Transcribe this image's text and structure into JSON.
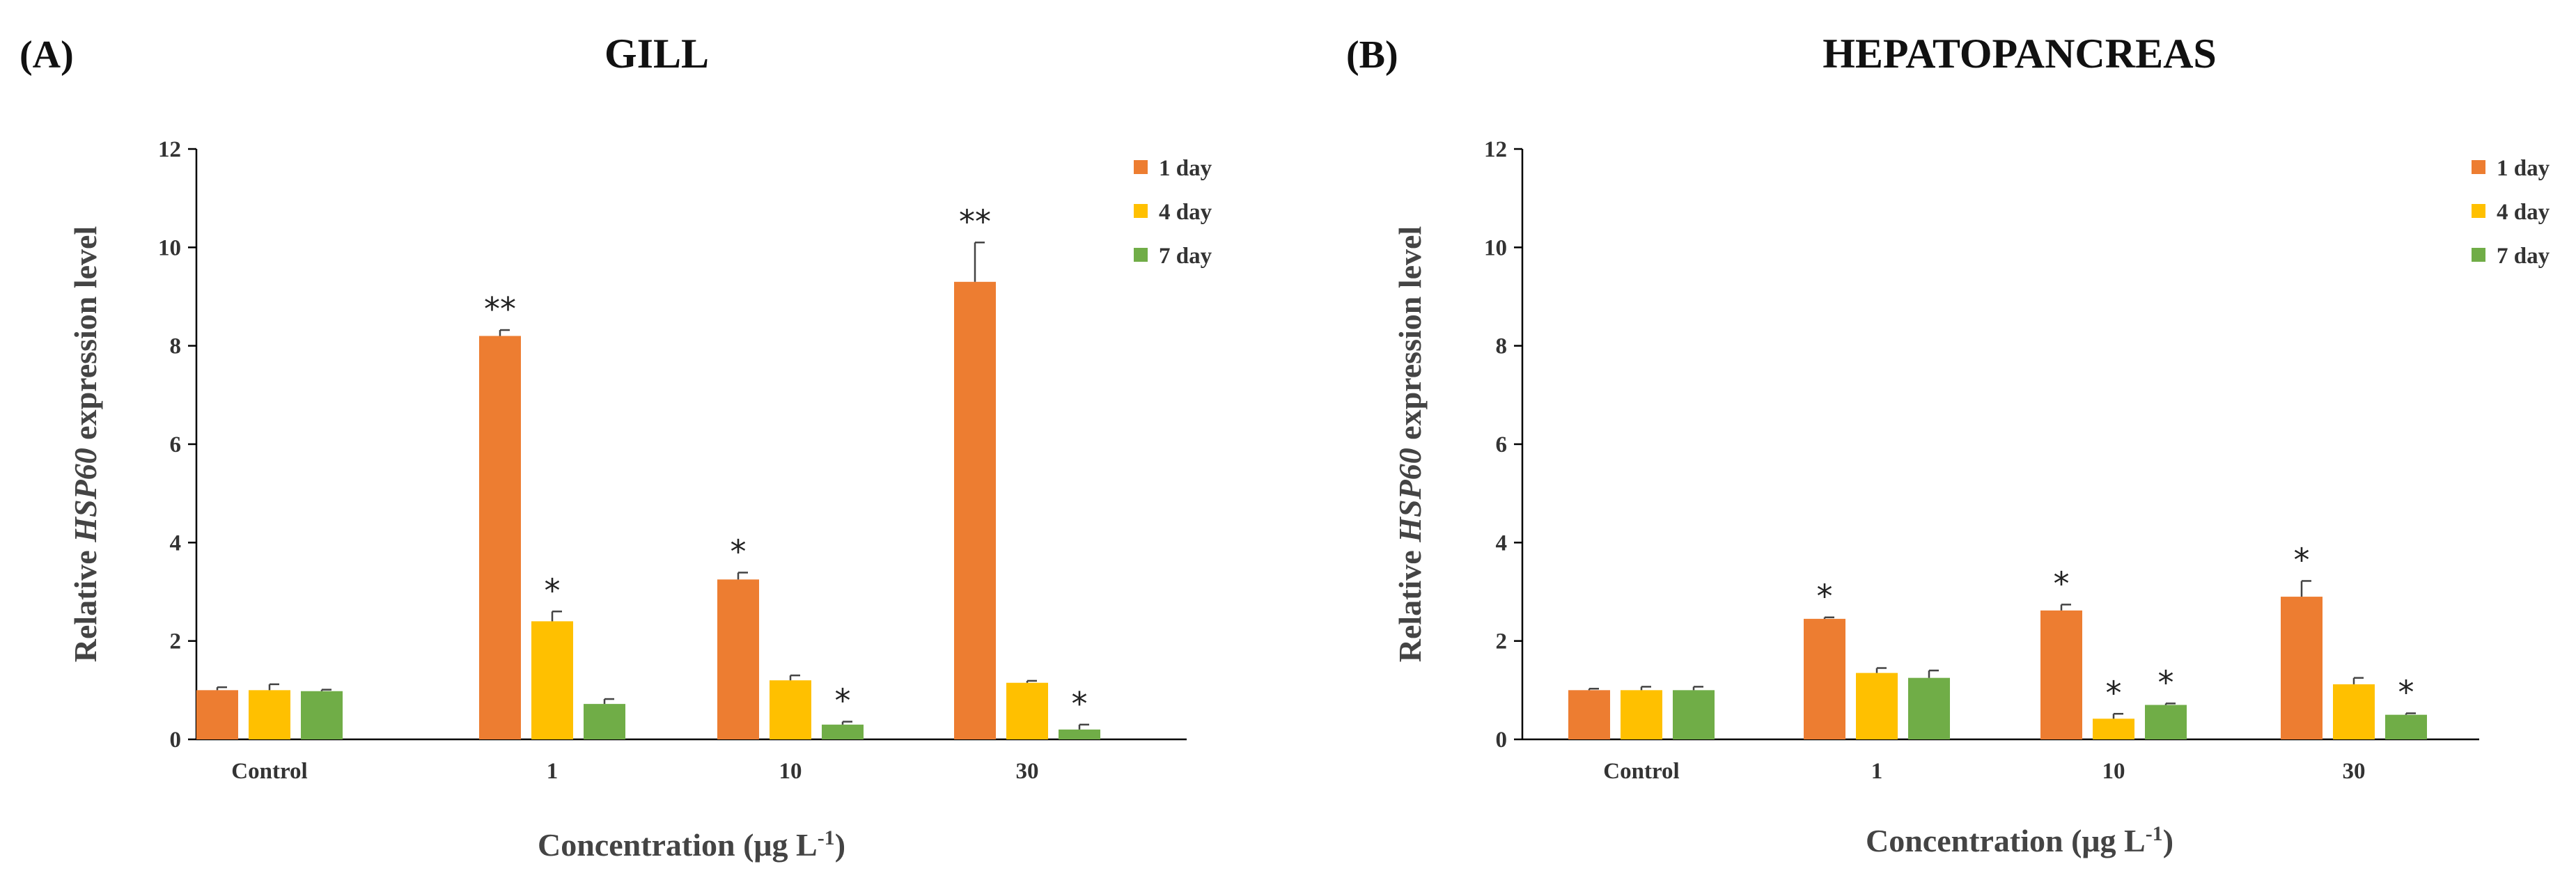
{
  "chart_data": [
    {
      "type": "bar",
      "panel_label": "(A)",
      "title": "GILL",
      "ylabel": {
        "prefix": "Relative ",
        "italic": "HSP60",
        "suffix": " expression level"
      },
      "xlabel": {
        "main": "Concentration",
        "unit_prefix": "(μg L",
        "unit_sup": "-1",
        "unit_suffix": ")"
      },
      "ylim": [
        0,
        12
      ],
      "yticks": [
        "0",
        "2",
        "4",
        "6",
        "8",
        "10",
        "12"
      ],
      "categories": [
        "Control",
        "1",
        "10",
        "30"
      ],
      "series": [
        {
          "name": "1 day",
          "color": "#ED7D31",
          "values": [
            1.0,
            8.2,
            3.25,
            9.3
          ],
          "errors": [
            0.06,
            0.12,
            0.14,
            0.8
          ],
          "sig": [
            "",
            "**",
            "*",
            "**"
          ]
        },
        {
          "name": "4 day",
          "color": "#FFC000",
          "values": [
            1.0,
            2.4,
            1.2,
            1.15
          ],
          "errors": [
            0.12,
            0.2,
            0.1,
            0.04
          ],
          "sig": [
            "",
            "*",
            "",
            ""
          ]
        },
        {
          "name": "7 day",
          "color": "#70AD47",
          "values": [
            0.98,
            0.72,
            0.3,
            0.2
          ],
          "errors": [
            0.03,
            0.1,
            0.06,
            0.1
          ],
          "sig": [
            "",
            "",
            "*",
            "*"
          ]
        }
      ]
    },
    {
      "type": "bar",
      "panel_label": "(B)",
      "title": "HEPATOPANCREAS",
      "ylabel": {
        "prefix": "Relative ",
        "italic": "HSP60",
        "suffix": " expression level"
      },
      "xlabel": {
        "main": "Concentration",
        "unit_prefix": "(μg L",
        "unit_sup": "-1",
        "unit_suffix": ")"
      },
      "ylim": [
        0,
        12
      ],
      "yticks": [
        "0",
        "2",
        "4",
        "6",
        "8",
        "10",
        "12"
      ],
      "categories": [
        "Control",
        "1",
        "10",
        "30"
      ],
      "series": [
        {
          "name": "1 day",
          "color": "#ED7D31",
          "values": [
            1.0,
            2.45,
            2.62,
            2.9
          ],
          "errors": [
            0.03,
            0.03,
            0.12,
            0.32
          ],
          "sig": [
            "",
            "*",
            "*",
            "*"
          ]
        },
        {
          "name": "4 day",
          "color": "#FFC000",
          "values": [
            1.0,
            1.35,
            0.42,
            1.12
          ],
          "errors": [
            0.07,
            0.1,
            0.1,
            0.13
          ],
          "sig": [
            "",
            "",
            "*",
            ""
          ]
        },
        {
          "name": "7 day",
          "color": "#70AD47",
          "values": [
            1.0,
            1.25,
            0.7,
            0.5
          ],
          "errors": [
            0.07,
            0.15,
            0.03,
            0.03
          ],
          "sig": [
            "",
            "",
            "*",
            "*"
          ]
        }
      ]
    }
  ]
}
